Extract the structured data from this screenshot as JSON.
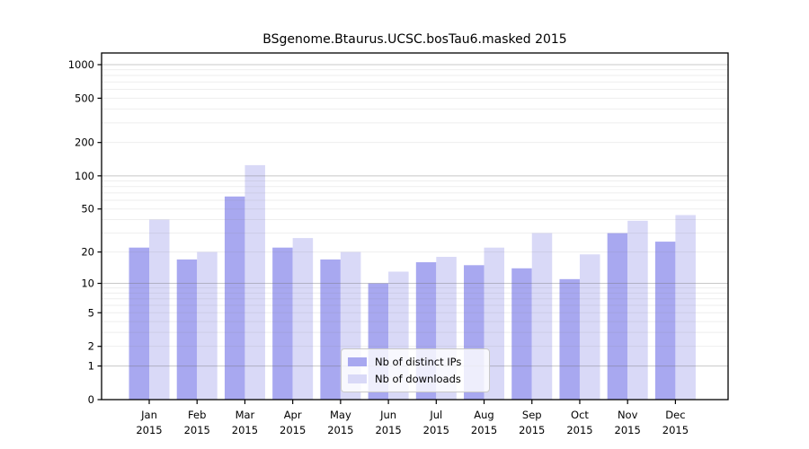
{
  "title": "BSgenome.Btaurus.UCSC.bosTau6.masked 2015",
  "legend": {
    "items": [
      {
        "label": "Nb of distinct IPs",
        "color": "#a8a8f0"
      },
      {
        "label": "Nb of downloads",
        "color": "#d9d9f7"
      }
    ]
  },
  "chart_data": {
    "type": "bar",
    "title": "BSgenome.Btaurus.UCSC.bosTau6.masked 2015",
    "categories": [
      "Jan",
      "Feb",
      "Mar",
      "Apr",
      "May",
      "Jun",
      "Jul",
      "Aug",
      "Sep",
      "Oct",
      "Nov",
      "Dec"
    ],
    "year_label": "2015",
    "series": [
      {
        "name": "Nb of distinct IPs",
        "color": "#a8a8f0",
        "values": [
          22,
          17,
          65,
          22,
          17,
          10,
          16,
          15,
          14,
          11,
          30,
          25
        ]
      },
      {
        "name": "Nb of downloads",
        "color": "#d9d9f7",
        "values": [
          40,
          20,
          125,
          27,
          20,
          13,
          18,
          22,
          30,
          19,
          39,
          44
        ]
      }
    ],
    "xlabel": "",
    "ylabel": "",
    "y_scale": "log1p",
    "y_ticks": [
      0,
      1,
      2,
      5,
      10,
      20,
      50,
      100,
      200,
      500,
      1000
    ],
    "ylim": [
      0,
      1000
    ],
    "grid": "horizontal, minor lines at 2-9 per decade, major lines at decades",
    "legend_position": "lower center inside plot"
  },
  "colors": {
    "grid_major": "#c8c8c8",
    "grid_minor": "#ededed",
    "axis": "#000000",
    "background": "#ffffff"
  }
}
